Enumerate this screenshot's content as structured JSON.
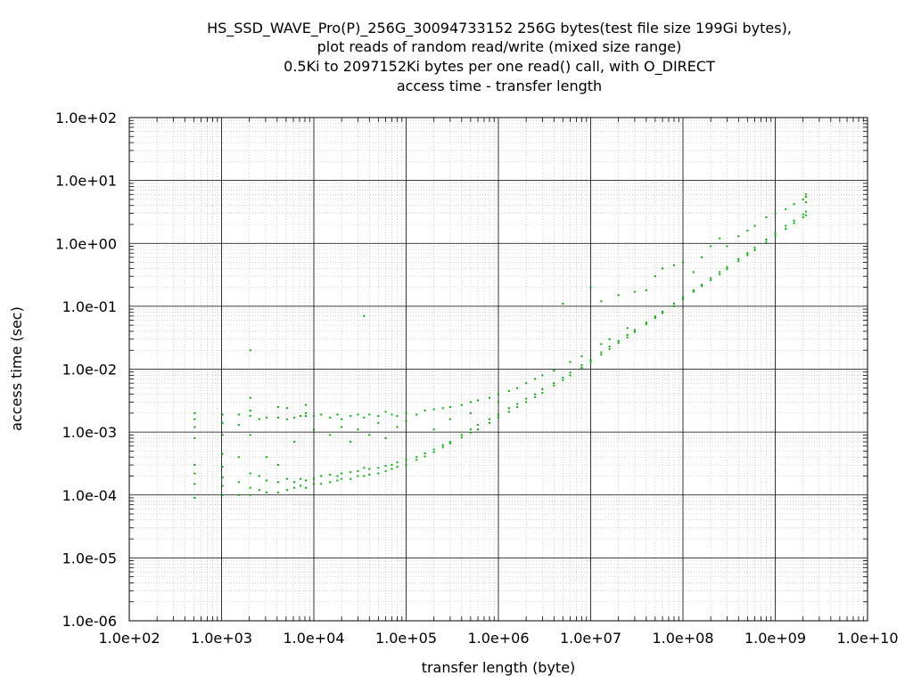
{
  "chart_data": {
    "type": "scatter",
    "title_lines": [
      "HS_SSD_WAVE_Pro(P)_256G_30094733152 256G bytes(test file size 199Gi bytes),",
      "plot reads of random read/write (mixed size range)",
      "0.5Ki to 2097152Ki bytes per one read() call, with O_DIRECT",
      "access time - transfer length"
    ],
    "xlabel": "transfer length (byte)",
    "ylabel": "access time (sec)",
    "x_scale": "log",
    "y_scale": "log",
    "xlim": [
      100,
      10000000000
    ],
    "ylim": [
      1e-06,
      100
    ],
    "x_tick_labels": [
      "1.0e+02",
      "1.0e+03",
      "1.0e+04",
      "1.0e+05",
      "1.0e+06",
      "1.0e+07",
      "1.0e+08",
      "1.0e+09",
      "1.0e+10"
    ],
    "y_tick_labels": [
      "1.0e-06",
      "1.0e-05",
      "1.0e-04",
      "1.0e-03",
      "1.0e-02",
      "1.0e-01",
      "1.0e+00",
      "1.0e+01",
      "1.0e+02"
    ],
    "grid": true,
    "point_color": "#00b000",
    "series": [
      {
        "values": [
          [
            512,
            9e-05
          ],
          [
            512,
            0.00015
          ],
          [
            512,
            0.00022
          ],
          [
            512,
            0.0003
          ],
          [
            512,
            0.0008
          ],
          [
            512,
            0.0012
          ],
          [
            512,
            0.0016
          ],
          [
            512,
            0.002
          ],
          [
            1024,
            0.0001
          ],
          [
            1024,
            0.00014
          ],
          [
            1024,
            0.00019
          ],
          [
            1024,
            0.00028
          ],
          [
            1024,
            0.00045
          ],
          [
            1024,
            0.0009
          ],
          [
            1024,
            0.0014
          ],
          [
            1024,
            0.0019
          ],
          [
            1536,
            0.0001
          ],
          [
            1536,
            0.00016
          ],
          [
            1536,
            0.0004
          ],
          [
            1536,
            0.0013
          ],
          [
            1536,
            0.0019
          ],
          [
            2048,
            0.0001
          ],
          [
            2048,
            0.00013
          ],
          [
            2048,
            0.00022
          ],
          [
            2048,
            0.0009
          ],
          [
            2048,
            0.0018
          ],
          [
            2048,
            0.0022
          ],
          [
            2048,
            0.0035
          ],
          [
            2048,
            0.02
          ],
          [
            2560,
            0.00012
          ],
          [
            2560,
            0.0002
          ],
          [
            2560,
            0.0016
          ],
          [
            3072,
            0.00011
          ],
          [
            3072,
            0.00017
          ],
          [
            3072,
            0.0004
          ],
          [
            3072,
            0.0017
          ],
          [
            4096,
            0.00011
          ],
          [
            4096,
            0.00016
          ],
          [
            4096,
            0.0003
          ],
          [
            4096,
            0.0017
          ],
          [
            4096,
            0.0025
          ],
          [
            5120,
            0.00012
          ],
          [
            5120,
            0.00018
          ],
          [
            5120,
            0.0016
          ],
          [
            5120,
            0.0024
          ],
          [
            6144,
            0.00013
          ],
          [
            6144,
            0.00016
          ],
          [
            6144,
            0.0017
          ],
          [
            6144,
            0.0007
          ],
          [
            7168,
            0.00014
          ],
          [
            7168,
            0.00018
          ],
          [
            7168,
            0.0018
          ],
          [
            8192,
            0.00013
          ],
          [
            8192,
            0.00017
          ],
          [
            8192,
            0.0018
          ],
          [
            8192,
            0.002
          ],
          [
            8192,
            0.0027
          ],
          [
            10000,
            0.00015
          ],
          [
            10000,
            0.00018
          ],
          [
            10000,
            0.0018
          ],
          [
            10000,
            0.0011
          ],
          [
            12000,
            0.00015
          ],
          [
            12000,
            0.0002
          ],
          [
            12000,
            0.0019
          ],
          [
            15000,
            0.00016
          ],
          [
            15000,
            0.00021
          ],
          [
            15000,
            0.0017
          ],
          [
            15000,
            0.0009
          ],
          [
            18000,
            0.00017
          ],
          [
            18000,
            0.0002
          ],
          [
            18000,
            0.0019
          ],
          [
            20000,
            0.00018
          ],
          [
            20000,
            0.00022
          ],
          [
            20000,
            0.0016
          ],
          [
            20000,
            0.0012
          ],
          [
            25000,
            0.00018
          ],
          [
            25000,
            0.00023
          ],
          [
            25000,
            0.0018
          ],
          [
            25000,
            0.0007
          ],
          [
            30000,
            0.0002
          ],
          [
            30000,
            0.00024
          ],
          [
            30000,
            0.0019
          ],
          [
            30000,
            0.0011
          ],
          [
            35000,
            0.0002
          ],
          [
            35000,
            0.00027
          ],
          [
            35000,
            0.0017
          ],
          [
            35000,
            0.07
          ],
          [
            40000,
            0.00021
          ],
          [
            40000,
            0.00026
          ],
          [
            40000,
            0.0019
          ],
          [
            40000,
            0.0009
          ],
          [
            50000,
            0.00022
          ],
          [
            50000,
            0.00027
          ],
          [
            50000,
            0.0018
          ],
          [
            50000,
            0.0014
          ],
          [
            60000,
            0.00024
          ],
          [
            60000,
            0.00029
          ],
          [
            60000,
            0.0021
          ],
          [
            60000,
            0.0008
          ],
          [
            70000,
            0.00026
          ],
          [
            70000,
            0.0003
          ],
          [
            70000,
            0.0019
          ],
          [
            80000,
            0.00028
          ],
          [
            80000,
            0.00033
          ],
          [
            80000,
            0.0018
          ],
          [
            80000,
            0.0012
          ],
          [
            100000,
            0.0003
          ],
          [
            100000,
            0.00036
          ],
          [
            100000,
            0.002
          ],
          [
            100000,
            0.0015
          ],
          [
            130000,
            0.00036
          ],
          [
            130000,
            0.0004
          ],
          [
            130000,
            0.0019
          ],
          [
            160000,
            0.00041
          ],
          [
            160000,
            0.00046
          ],
          [
            160000,
            0.0022
          ],
          [
            200000,
            0.00048
          ],
          [
            200000,
            0.00053
          ],
          [
            200000,
            0.0023
          ],
          [
            200000,
            0.0011
          ],
          [
            250000,
            0.00057
          ],
          [
            250000,
            0.00062
          ],
          [
            250000,
            0.0024
          ],
          [
            300000,
            0.00066
          ],
          [
            300000,
            0.0007
          ],
          [
            300000,
            0.0025
          ],
          [
            300000,
            0.0016
          ],
          [
            400000,
            0.00082
          ],
          [
            400000,
            0.0009
          ],
          [
            400000,
            0.0027
          ],
          [
            500000,
            0.00098
          ],
          [
            500000,
            0.0011
          ],
          [
            500000,
            0.003
          ],
          [
            500000,
            0.002
          ],
          [
            600000,
            0.0011
          ],
          [
            600000,
            0.0013
          ],
          [
            600000,
            0.0032
          ],
          [
            800000,
            0.0014
          ],
          [
            800000,
            0.0016
          ],
          [
            800000,
            0.0035
          ],
          [
            1000000,
            0.0017
          ],
          [
            1000000,
            0.0019
          ],
          [
            1000000,
            0.004
          ],
          [
            1000000,
            0.003
          ],
          [
            1300000,
            0.0021
          ],
          [
            1300000,
            0.0024
          ],
          [
            1300000,
            0.0045
          ],
          [
            1600000,
            0.0025
          ],
          [
            1600000,
            0.0028
          ],
          [
            1600000,
            0.005
          ],
          [
            2000000,
            0.003
          ],
          [
            2000000,
            0.0034
          ],
          [
            2000000,
            0.006
          ],
          [
            2500000,
            0.0036
          ],
          [
            2500000,
            0.004
          ],
          [
            2500000,
            0.007
          ],
          [
            3000000,
            0.0042
          ],
          [
            3000000,
            0.0048
          ],
          [
            3000000,
            0.008
          ],
          [
            4000000,
            0.0055
          ],
          [
            4000000,
            0.006
          ],
          [
            4000000,
            0.0095
          ],
          [
            5000000,
            0.0067
          ],
          [
            5000000,
            0.0073
          ],
          [
            5000000,
            0.11
          ],
          [
            6000000,
            0.008
          ],
          [
            6000000,
            0.0088
          ],
          [
            6000000,
            0.013
          ],
          [
            8000000,
            0.0105
          ],
          [
            8000000,
            0.0115
          ],
          [
            8000000,
            0.016
          ],
          [
            10000000,
            0.013
          ],
          [
            10000000,
            0.014
          ],
          [
            10000000,
            0.2
          ],
          [
            13000000,
            0.017
          ],
          [
            13000000,
            0.0185
          ],
          [
            13000000,
            0.025
          ],
          [
            13000000,
            0.12
          ],
          [
            16000000,
            0.021
          ],
          [
            16000000,
            0.023
          ],
          [
            16000000,
            0.03
          ],
          [
            20000000,
            0.026
          ],
          [
            20000000,
            0.028
          ],
          [
            20000000,
            0.15
          ],
          [
            25000000,
            0.032
          ],
          [
            25000000,
            0.035
          ],
          [
            25000000,
            0.045
          ],
          [
            30000000,
            0.039
          ],
          [
            30000000,
            0.042
          ],
          [
            30000000,
            0.17
          ],
          [
            40000000,
            0.052
          ],
          [
            40000000,
            0.055
          ],
          [
            40000000,
            0.18
          ],
          [
            50000000,
            0.065
          ],
          [
            50000000,
            0.069
          ],
          [
            50000000,
            0.3
          ],
          [
            60000000,
            0.078
          ],
          [
            60000000,
            0.082
          ],
          [
            60000000,
            0.4
          ],
          [
            80000000,
            0.1
          ],
          [
            80000000,
            0.11
          ],
          [
            80000000,
            0.45
          ],
          [
            100000000,
            0.13
          ],
          [
            100000000,
            0.14
          ],
          [
            100000000,
            0.5
          ],
          [
            130000000,
            0.17
          ],
          [
            130000000,
            0.18
          ],
          [
            130000000,
            0.35
          ],
          [
            160000000,
            0.21
          ],
          [
            160000000,
            0.22
          ],
          [
            160000000,
            0.6
          ],
          [
            200000000,
            0.26
          ],
          [
            200000000,
            0.28
          ],
          [
            200000000,
            0.9
          ],
          [
            250000000,
            0.32
          ],
          [
            250000000,
            0.35
          ],
          [
            250000000,
            1.2
          ],
          [
            300000000,
            0.39
          ],
          [
            300000000,
            0.42
          ],
          [
            300000000,
            0.9
          ],
          [
            400000000,
            0.52
          ],
          [
            400000000,
            0.56
          ],
          [
            400000000,
            1.3
          ],
          [
            500000000,
            0.65
          ],
          [
            500000000,
            0.7
          ],
          [
            500000000,
            1.6
          ],
          [
            600000000,
            0.78
          ],
          [
            600000000,
            0.85
          ],
          [
            600000000,
            1.9
          ],
          [
            800000000,
            1.05
          ],
          [
            800000000,
            1.15
          ],
          [
            800000000,
            2.6
          ],
          [
            1000000000,
            1.3
          ],
          [
            1000000000,
            1.45
          ],
          [
            1000000000,
            3.0
          ],
          [
            1300000000,
            1.7
          ],
          [
            1300000000,
            1.9
          ],
          [
            1300000000,
            3.5
          ],
          [
            1600000000,
            2.1
          ],
          [
            1600000000,
            2.3
          ],
          [
            1600000000,
            4.2
          ],
          [
            2000000000,
            2.6
          ],
          [
            2000000000,
            2.9
          ],
          [
            2000000000,
            5.0
          ],
          [
            2147483648,
            2.8
          ],
          [
            2147483648,
            3.2
          ],
          [
            2147483648,
            5.5
          ],
          [
            2147483648,
            6.0
          ],
          [
            2147483648,
            4.5
          ]
        ]
      }
    ]
  }
}
